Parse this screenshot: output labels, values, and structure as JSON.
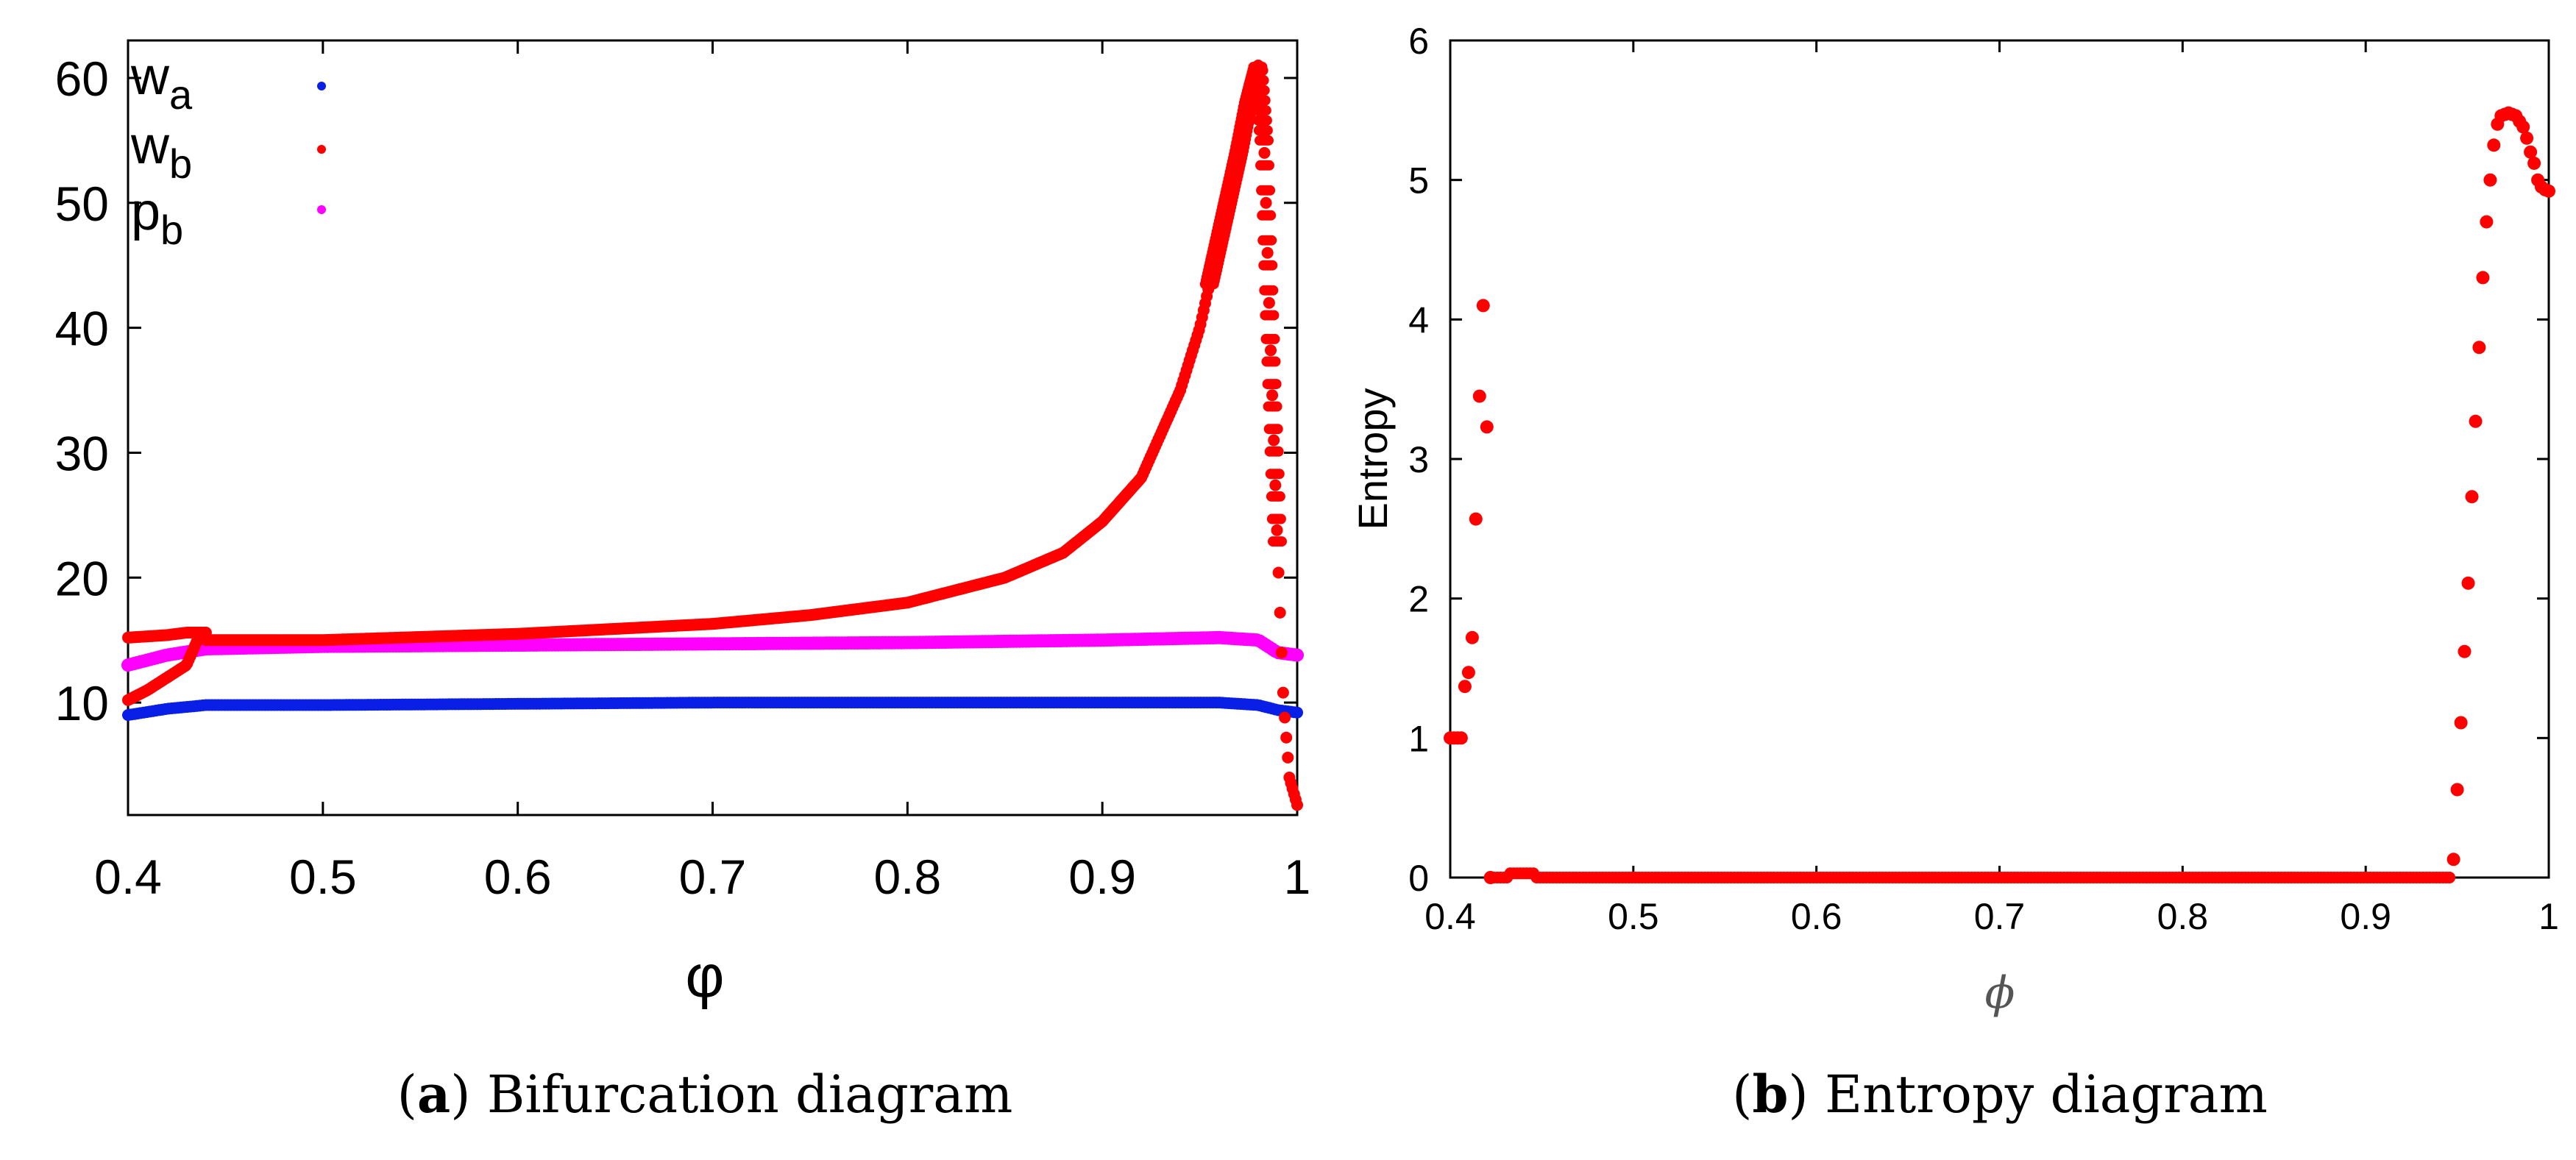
{
  "chart_data": [
    {
      "type": "scatter",
      "panel_caption_letter": "a",
      "caption_suffix": " Bifurcation diagram",
      "xlabel": "φ",
      "ylabel": "",
      "xlim": [
        0.4,
        1.0
      ],
      "ylim": [
        1,
        63
      ],
      "x_ticks": [
        0.4,
        0.5,
        0.6,
        0.7,
        0.8,
        0.9,
        1.0
      ],
      "x_tick_labels": [
        "0.4",
        "0.5",
        "0.6",
        "0.7",
        "0.8",
        "0.9",
        "1"
      ],
      "y_ticks": [
        10,
        20,
        30,
        40,
        50,
        60
      ],
      "y_tick_labels": [
        "10",
        "20",
        "30",
        "40",
        "50",
        "60"
      ],
      "legend_position": "top-left",
      "colors": {
        "w_a": "#0a1fe6",
        "w_b": "#ff0000",
        "p_b": "#ff00ff"
      },
      "series": [
        {
          "name": "wa",
          "base": "w",
          "sub": "a",
          "color": "#0a1fe6",
          "x": [
            0.4,
            0.42,
            0.44,
            0.5,
            0.6,
            0.7,
            0.8,
            0.9,
            0.96,
            0.98,
            0.99,
            1.0
          ],
          "y": [
            9.0,
            9.5,
            9.8,
            9.8,
            9.9,
            10.0,
            10.0,
            10.0,
            10.0,
            9.8,
            9.4,
            9.2
          ]
        },
        {
          "name": "wb",
          "base": "w",
          "sub": "b",
          "color": "#ff0000",
          "branches": [
            {
              "x": [
                0.4,
                0.42,
                0.43,
                0.44
              ],
              "y": [
                15.2,
                15.4,
                15.6,
                15.6
              ]
            },
            {
              "x": [
                0.4,
                0.41,
                0.42,
                0.43,
                0.437
              ],
              "y": [
                10.2,
                11.0,
                12.0,
                13.0,
                15.5
              ]
            },
            {
              "x": [
                0.44,
                0.5,
                0.6,
                0.7,
                0.75,
                0.8,
                0.85,
                0.88,
                0.9,
                0.92,
                0.94,
                0.95,
                0.96,
                0.97,
                0.975,
                0.98,
                0.983,
                0.986,
                0.99,
                0.993,
                0.996,
                1.0
              ],
              "y": [
                15.0,
                15.0,
                15.5,
                16.3,
                17.0,
                18.0,
                20.0,
                22.0,
                24.5,
                28.0,
                35.0,
                40.0,
                47.0,
                54.0,
                58.0,
                61.0,
                55.0,
                40.0,
                22.0,
                10.0,
                4.0,
                1.8
              ]
            }
          ]
        },
        {
          "name": "pb",
          "base": "p",
          "sub": "b",
          "color": "#ff00ff",
          "x": [
            0.4,
            0.42,
            0.44,
            0.5,
            0.6,
            0.7,
            0.8,
            0.9,
            0.96,
            0.98,
            0.99,
            1.0
          ],
          "y": [
            13.0,
            13.8,
            14.3,
            14.5,
            14.6,
            14.7,
            14.8,
            15.0,
            15.2,
            15.0,
            14.0,
            13.8
          ]
        }
      ]
    },
    {
      "type": "scatter",
      "panel_caption_letter": "b",
      "caption_suffix": " Entropy diagram",
      "xlabel": "ϕ",
      "ylabel": "Entropy",
      "xlim": [
        0.4,
        1.0
      ],
      "ylim": [
        0,
        6
      ],
      "x_ticks": [
        0.4,
        0.5,
        0.6,
        0.7,
        0.8,
        0.9,
        1.0
      ],
      "x_tick_labels": [
        "0.4",
        "0.5",
        "0.6",
        "0.7",
        "0.8",
        "0.9",
        "1"
      ],
      "y_ticks": [
        0,
        1,
        2,
        3,
        4,
        5,
        6
      ],
      "y_tick_labels": [
        "0",
        "1",
        "2",
        "3",
        "4",
        "5",
        "6"
      ],
      "series": [
        {
          "name": "entropy",
          "color": "#ff0000",
          "x": [
            0.4,
            0.402,
            0.404,
            0.406,
            0.408,
            0.41,
            0.412,
            0.414,
            0.416,
            0.418,
            0.42,
            0.422,
            0.948,
            0.95,
            0.952,
            0.954,
            0.956,
            0.958,
            0.96,
            0.962,
            0.964,
            0.966,
            0.968,
            0.97,
            0.972,
            0.974,
            0.976,
            0.978,
            0.98,
            0.982,
            0.984,
            0.986,
            0.988,
            0.99,
            0.992,
            0.994,
            0.996,
            0.998,
            1.0
          ],
          "y": [
            1.0,
            1.0,
            1.0,
            1.0,
            1.37,
            1.47,
            1.72,
            2.57,
            3.45,
            4.1,
            3.23,
            0.0,
            0.13,
            0.63,
            1.11,
            1.62,
            2.11,
            2.73,
            3.27,
            3.8,
            4.3,
            4.7,
            5.0,
            5.25,
            5.4,
            5.46,
            5.47,
            5.48,
            5.47,
            5.46,
            5.42,
            5.38,
            5.3,
            5.2,
            5.12,
            5.0,
            4.95,
            4.93,
            4.92
          ],
          "plateau": {
            "x_start": 0.422,
            "x_end": 0.946,
            "y": 0.0,
            "bump_x": [
              0.432,
              0.446
            ],
            "bump_y": 0.03
          }
        }
      ]
    }
  ]
}
